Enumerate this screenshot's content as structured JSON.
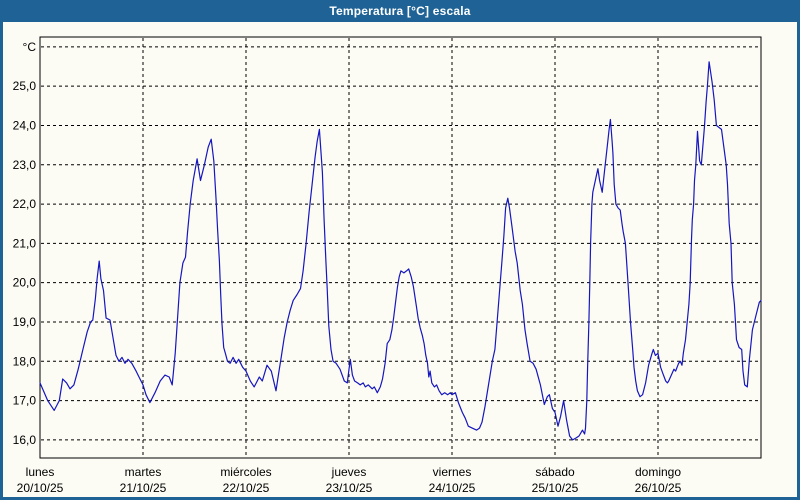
{
  "window": {
    "title": "Temperatura [°C] escala"
  },
  "colors": {
    "frame_blue": "#1f6396",
    "paper": "#fcfcf4",
    "line_blue": "#1616c0",
    "grid_black": "#000000",
    "title_text": "#ffffff"
  },
  "chart_data": {
    "type": "line",
    "title": "Temperatura [°C] escala",
    "xlabel": "",
    "ylabel": "°C",
    "y_unit_label": "°C",
    "grid": "dashed",
    "legend": "none",
    "ylim": [
      15.54,
      26.25
    ],
    "x_range_hours": [
      0,
      168
    ],
    "n_days": 7,
    "yticks": [
      {
        "v": 16,
        "label": "16,0"
      },
      {
        "v": 17,
        "label": "17,0"
      },
      {
        "v": 18,
        "label": "18,0"
      },
      {
        "v": 19,
        "label": "19,0"
      },
      {
        "v": 20,
        "label": "20,0"
      },
      {
        "v": 21,
        "label": "21,0"
      },
      {
        "v": 22,
        "label": "22,0"
      },
      {
        "v": 23,
        "label": "23,0"
      },
      {
        "v": 24,
        "label": "24,0"
      },
      {
        "v": 25,
        "label": "25,0"
      },
      {
        "v": 26,
        "label": "°C"
      }
    ],
    "days": [
      {
        "name": "lunes",
        "date": "20/10/25"
      },
      {
        "name": "martes",
        "date": "21/10/25"
      },
      {
        "name": "miércoles",
        "date": "22/10/25"
      },
      {
        "name": "jueves",
        "date": "23/10/25"
      },
      {
        "name": "viernes",
        "date": "24/10/25"
      },
      {
        "name": "sábado",
        "date": "25/10/25"
      },
      {
        "name": "domingo",
        "date": "26/10/25"
      }
    ],
    "series": [
      {
        "name": "Temperatura",
        "color": "#1616c0",
        "points": [
          [
            0,
            17.45
          ],
          [
            1,
            17.2
          ],
          [
            1.8,
            17.0
          ],
          [
            3.3,
            16.75
          ],
          [
            4.5,
            17.0
          ],
          [
            5.3,
            17.55
          ],
          [
            6.2,
            17.45
          ],
          [
            7,
            17.3
          ],
          [
            7.9,
            17.4
          ],
          [
            8.9,
            17.8
          ],
          [
            10,
            18.3
          ],
          [
            11,
            18.75
          ],
          [
            11.8,
            19.0
          ],
          [
            12.3,
            19.05
          ],
          [
            12.9,
            19.6
          ],
          [
            13.3,
            20.1
          ],
          [
            13.8,
            20.55
          ],
          [
            14.2,
            20.1
          ],
          [
            14.8,
            19.8
          ],
          [
            15.4,
            19.1
          ],
          [
            16.3,
            19.05
          ],
          [
            17,
            18.6
          ],
          [
            17.7,
            18.15
          ],
          [
            18.4,
            18.0
          ],
          [
            19.1,
            18.1
          ],
          [
            19.8,
            17.95
          ],
          [
            20.5,
            18.05
          ],
          [
            21.4,
            17.95
          ],
          [
            22.4,
            17.75
          ],
          [
            23.3,
            17.55
          ],
          [
            24,
            17.4
          ],
          [
            24.7,
            17.15
          ],
          [
            25.6,
            16.95
          ],
          [
            26.8,
            17.2
          ],
          [
            28,
            17.5
          ],
          [
            29.1,
            17.65
          ],
          [
            30.1,
            17.6
          ],
          [
            30.8,
            17.4
          ],
          [
            31.5,
            18.2
          ],
          [
            32,
            19.0
          ],
          [
            32.6,
            20.0
          ],
          [
            33.3,
            20.5
          ],
          [
            33.9,
            20.65
          ],
          [
            34.4,
            21.3
          ],
          [
            35,
            22.0
          ],
          [
            35.7,
            22.6
          ],
          [
            36.6,
            23.15
          ],
          [
            37.4,
            22.6
          ],
          [
            38.3,
            23.0
          ],
          [
            39.2,
            23.45
          ],
          [
            39.9,
            23.65
          ],
          [
            40.5,
            23.1
          ],
          [
            41,
            22.15
          ],
          [
            41.4,
            21.3
          ],
          [
            41.8,
            20.55
          ],
          [
            42.1,
            19.7
          ],
          [
            42.4,
            18.95
          ],
          [
            42.8,
            18.35
          ],
          [
            43.2,
            18.2
          ],
          [
            43.7,
            18.0
          ],
          [
            44.3,
            17.95
          ],
          [
            45,
            18.1
          ],
          [
            45.7,
            17.95
          ],
          [
            46.3,
            18.05
          ],
          [
            47.2,
            17.85
          ],
          [
            48,
            17.75
          ],
          [
            49,
            17.5
          ],
          [
            49.9,
            17.35
          ],
          [
            51.1,
            17.6
          ],
          [
            51.8,
            17.5
          ],
          [
            52.9,
            17.9
          ],
          [
            53.9,
            17.75
          ],
          [
            55,
            17.25
          ],
          [
            55.7,
            17.75
          ],
          [
            56.2,
            18.1
          ],
          [
            56.9,
            18.6
          ],
          [
            57.6,
            19.0
          ],
          [
            58.3,
            19.3
          ],
          [
            59,
            19.55
          ],
          [
            59.9,
            19.7
          ],
          [
            60.7,
            19.85
          ],
          [
            61.3,
            20.3
          ],
          [
            62,
            21.0
          ],
          [
            62.7,
            21.8
          ],
          [
            63.4,
            22.5
          ],
          [
            64.1,
            23.2
          ],
          [
            64.6,
            23.6
          ],
          [
            65.1,
            23.9
          ],
          [
            65.8,
            22.8
          ],
          [
            66.2,
            21.6
          ],
          [
            66.6,
            20.6
          ],
          [
            66.9,
            19.9
          ],
          [
            67.3,
            18.9
          ],
          [
            67.8,
            18.3
          ],
          [
            68.3,
            18.0
          ],
          [
            69,
            17.95
          ],
          [
            69.9,
            17.8
          ],
          [
            70.9,
            17.5
          ],
          [
            71.6,
            17.45
          ],
          [
            72,
            17.8
          ],
          [
            72.3,
            18.05
          ],
          [
            72.8,
            17.65
          ],
          [
            73.3,
            17.5
          ],
          [
            74,
            17.45
          ],
          [
            74.6,
            17.4
          ],
          [
            75.3,
            17.45
          ],
          [
            75.8,
            17.35
          ],
          [
            76.5,
            17.4
          ],
          [
            77.4,
            17.3
          ],
          [
            77.9,
            17.35
          ],
          [
            78.6,
            17.2
          ],
          [
            79.3,
            17.35
          ],
          [
            79.8,
            17.55
          ],
          [
            80.4,
            17.95
          ],
          [
            80.9,
            18.45
          ],
          [
            81.5,
            18.55
          ],
          [
            82,
            18.8
          ],
          [
            82.4,
            19.1
          ],
          [
            82.8,
            19.45
          ],
          [
            83.3,
            19.9
          ],
          [
            83.7,
            20.15
          ],
          [
            84.1,
            20.3
          ],
          [
            84.8,
            20.25
          ],
          [
            85.4,
            20.3
          ],
          [
            85.9,
            20.35
          ],
          [
            86.5,
            20.15
          ],
          [
            87,
            19.9
          ],
          [
            87.7,
            19.4
          ],
          [
            88.1,
            19.1
          ],
          [
            88.6,
            18.85
          ],
          [
            89.1,
            18.65
          ],
          [
            89.5,
            18.45
          ],
          [
            89.9,
            18.15
          ],
          [
            90.3,
            17.95
          ],
          [
            90.6,
            17.6
          ],
          [
            90.9,
            17.75
          ],
          [
            91.3,
            17.45
          ],
          [
            91.9,
            17.35
          ],
          [
            92.4,
            17.4
          ],
          [
            93,
            17.25
          ],
          [
            93.6,
            17.15
          ],
          [
            94.3,
            17.2
          ],
          [
            95,
            17.15
          ],
          [
            95.6,
            17.2
          ],
          [
            96,
            17.15
          ],
          [
            96.8,
            17.2
          ],
          [
            97.5,
            16.95
          ],
          [
            98.4,
            16.7
          ],
          [
            99.1,
            16.55
          ],
          [
            99.8,
            16.35
          ],
          [
            100.7,
            16.3
          ],
          [
            101.7,
            16.25
          ],
          [
            102.4,
            16.3
          ],
          [
            103,
            16.45
          ],
          [
            103.7,
            16.85
          ],
          [
            104.5,
            17.4
          ],
          [
            105.4,
            18.0
          ],
          [
            106,
            18.3
          ],
          [
            106.5,
            19.0
          ],
          [
            107.1,
            19.8
          ],
          [
            107.6,
            20.5
          ],
          [
            108.1,
            21.2
          ],
          [
            108.5,
            21.9
          ],
          [
            108.8,
            22.05
          ],
          [
            109,
            22.15
          ],
          [
            109.4,
            21.9
          ],
          [
            110,
            21.4
          ],
          [
            110.7,
            20.8
          ],
          [
            111.2,
            20.5
          ],
          [
            111.9,
            19.8
          ],
          [
            112.4,
            19.45
          ],
          [
            113,
            18.8
          ],
          [
            113.5,
            18.45
          ],
          [
            114.2,
            18.0
          ],
          [
            114.9,
            17.95
          ],
          [
            115.6,
            17.8
          ],
          [
            116.6,
            17.4
          ],
          [
            117.5,
            16.9
          ],
          [
            118.2,
            17.1
          ],
          [
            118.7,
            17.15
          ],
          [
            119.4,
            16.8
          ],
          [
            120,
            16.7
          ],
          [
            120.7,
            16.35
          ],
          [
            121.3,
            16.6
          ],
          [
            122,
            17.0
          ],
          [
            122.7,
            16.5
          ],
          [
            123.4,
            16.1
          ],
          [
            124.1,
            16.0
          ],
          [
            124.9,
            16.05
          ],
          [
            125.6,
            16.1
          ],
          [
            126.4,
            16.25
          ],
          [
            126.9,
            16.15
          ],
          [
            127.1,
            16.3
          ],
          [
            127.4,
            17.0
          ],
          [
            127.6,
            17.85
          ],
          [
            127.9,
            19.0
          ],
          [
            128.1,
            20.0
          ],
          [
            128.3,
            21.0
          ],
          [
            128.6,
            22.0
          ],
          [
            128.8,
            22.3
          ],
          [
            129.2,
            22.5
          ],
          [
            129.7,
            22.75
          ],
          [
            130,
            22.9
          ],
          [
            130.4,
            22.6
          ],
          [
            131,
            22.3
          ],
          [
            131.7,
            23.0
          ],
          [
            132.2,
            23.5
          ],
          [
            132.6,
            23.9
          ],
          [
            132.9,
            24.15
          ],
          [
            133.3,
            23.6
          ],
          [
            133.5,
            23.3
          ],
          [
            133.8,
            22.5
          ],
          [
            134.2,
            22.0
          ],
          [
            134.7,
            21.9
          ],
          [
            135.2,
            21.85
          ],
          [
            135.6,
            21.5
          ],
          [
            135.9,
            21.3
          ],
          [
            136.4,
            21.0
          ],
          [
            137,
            20.0
          ],
          [
            137.6,
            19.0
          ],
          [
            138.1,
            18.3
          ],
          [
            138.4,
            17.85
          ],
          [
            138.8,
            17.5
          ],
          [
            139.2,
            17.25
          ],
          [
            139.8,
            17.1
          ],
          [
            140.4,
            17.15
          ],
          [
            141.1,
            17.45
          ],
          [
            141.8,
            17.9
          ],
          [
            142.6,
            18.2
          ],
          [
            142.9,
            18.3
          ],
          [
            143.4,
            18.15
          ],
          [
            144,
            18.2
          ],
          [
            144.6,
            17.85
          ],
          [
            145.1,
            17.7
          ],
          [
            145.8,
            17.5
          ],
          [
            146.2,
            17.45
          ],
          [
            146.5,
            17.5
          ],
          [
            147.3,
            17.7
          ],
          [
            147.7,
            17.8
          ],
          [
            148.1,
            17.75
          ],
          [
            148.8,
            17.95
          ],
          [
            149.2,
            18.0
          ],
          [
            149.6,
            17.9
          ],
          [
            149.9,
            18.2
          ],
          [
            150.4,
            18.55
          ],
          [
            150.8,
            19.0
          ],
          [
            151.2,
            19.45
          ],
          [
            151.5,
            20.0
          ],
          [
            151.8,
            21.1
          ],
          [
            152,
            21.6
          ],
          [
            152.3,
            22.0
          ],
          [
            152.5,
            22.6
          ],
          [
            152.8,
            23.0
          ],
          [
            153.2,
            23.85
          ],
          [
            153.7,
            23.1
          ],
          [
            154.1,
            23.0
          ],
          [
            154.8,
            23.95
          ],
          [
            155.2,
            24.6
          ],
          [
            155.5,
            25.0
          ],
          [
            155.9,
            25.62
          ],
          [
            156.6,
            25.1
          ],
          [
            157.1,
            24.65
          ],
          [
            157.6,
            24.0
          ],
          [
            158.2,
            23.95
          ],
          [
            158.8,
            23.9
          ],
          [
            159.4,
            23.4
          ],
          [
            159.9,
            23.0
          ],
          [
            160.2,
            22.5
          ],
          [
            160.6,
            21.5
          ],
          [
            161,
            21.0
          ],
          [
            161.3,
            20.0
          ],
          [
            161.8,
            19.45
          ],
          [
            162.3,
            18.55
          ],
          [
            162.9,
            18.35
          ],
          [
            163.5,
            18.3
          ],
          [
            163.8,
            17.75
          ],
          [
            164.2,
            17.4
          ],
          [
            164.8,
            17.35
          ],
          [
            165.3,
            18.05
          ],
          [
            166,
            18.8
          ],
          [
            166.9,
            19.2
          ],
          [
            167.6,
            19.5
          ],
          [
            168,
            19.55
          ]
        ]
      }
    ]
  }
}
